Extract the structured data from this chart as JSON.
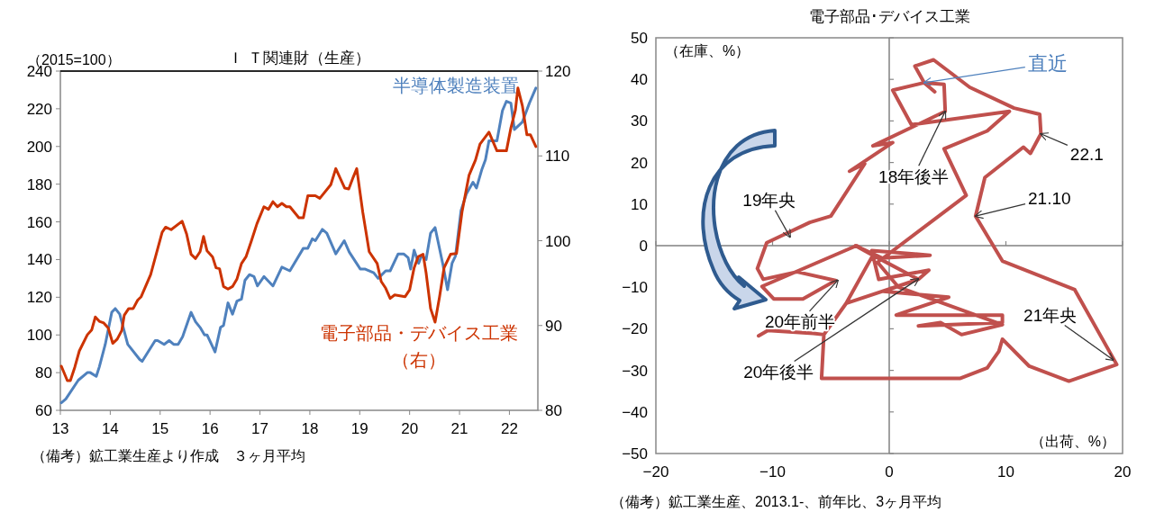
{
  "chart_data": [
    {
      "type": "line",
      "title": "Ｉ Ｔ関連財（生産）",
      "ylabel": "（2015=100）",
      "xlim": [
        2013,
        2022.57
      ],
      "xticks": [
        {
          "value": 2013,
          "label": "13"
        },
        {
          "value": 2014,
          "label": "14"
        },
        {
          "value": 2015,
          "label": "15"
        },
        {
          "value": 2016,
          "label": "16"
        },
        {
          "value": 2017,
          "label": "17"
        },
        {
          "value": 2018,
          "label": "18"
        },
        {
          "value": 2019,
          "label": "19"
        },
        {
          "value": 2020,
          "label": "20"
        },
        {
          "value": 2021,
          "label": "21"
        },
        {
          "value": 2022,
          "label": "22"
        }
      ],
      "ylim": [
        60,
        240
      ],
      "yticks": [
        60,
        80,
        100,
        120,
        140,
        160,
        180,
        200,
        220,
        240
      ],
      "y2lim": [
        80,
        120
      ],
      "y2ticks": [
        80,
        90,
        100,
        110,
        120
      ],
      "series": [
        {
          "name": "半導体製造装置",
          "color": "#4f81bd",
          "x": [
            2013.02,
            2013.11,
            2013.36,
            2013.54,
            2013.6,
            2013.72,
            2013.78,
            2013.9,
            2014.03,
            2014.1,
            2014.19,
            2014.35,
            2014.59,
            2014.64,
            2014.9,
            2014.95,
            2015.08,
            2015.18,
            2015.27,
            2015.36,
            2015.45,
            2015.62,
            2015.71,
            2015.8,
            2015.89,
            2015.94,
            2016.1,
            2016.21,
            2016.27,
            2016.36,
            2016.45,
            2016.54,
            2016.63,
            2016.7,
            2016.79,
            2016.88,
            2016.95,
            2017.08,
            2017.26,
            2017.44,
            2017.6,
            2017.87,
            2017.96,
            2018.05,
            2018.11,
            2018.25,
            2018.34,
            2018.52,
            2018.69,
            2018.79,
            2019.01,
            2019.1,
            2019.28,
            2019.37,
            2019.52,
            2019.61,
            2019.77,
            2019.88,
            2019.97,
            2020.02,
            2020.09,
            2020.18,
            2020.24,
            2020.33,
            2020.42,
            2020.51,
            2020.67,
            2020.76,
            2020.85,
            2020.92,
            2021.03,
            2021.14,
            2021.27,
            2021.34,
            2021.45,
            2021.52,
            2021.59,
            2021.75,
            2021.86,
            2021.94,
            2022.03,
            2022.1,
            2022.26,
            2022.4,
            2022.53
          ],
          "values": [
            64,
            66,
            76,
            80,
            80,
            78,
            83,
            95,
            112,
            114,
            111,
            95,
            87,
            86,
            97,
            97,
            95,
            97,
            95,
            95,
            99,
            112,
            107,
            104,
            100,
            100,
            91,
            104,
            105,
            117,
            111,
            118,
            119,
            129,
            132,
            131,
            126,
            131,
            126,
            136,
            134,
            146,
            146,
            151,
            150,
            156,
            154,
            143,
            150,
            144,
            135,
            135,
            133,
            130,
            134,
            134,
            143,
            143,
            141,
            135,
            145,
            138,
            142,
            140,
            154,
            157,
            137,
            124,
            138,
            142,
            166,
            175,
            181,
            178,
            188,
            193,
            203,
            203,
            219,
            224,
            223,
            209,
            213,
            223,
            231
          ]
        },
        {
          "name": "電子部品・デバイス工業（右）",
          "color": "#cc3300",
          "axis": "y2",
          "x": [
            2013.02,
            2013.14,
            2013.2,
            2013.29,
            2013.38,
            2013.54,
            2013.63,
            2013.7,
            2013.78,
            2013.87,
            2013.96,
            2014.05,
            2014.14,
            2014.23,
            2014.28,
            2014.37,
            2014.46,
            2014.55,
            2014.62,
            2014.81,
            2015.04,
            2015.11,
            2015.22,
            2015.44,
            2015.53,
            2015.62,
            2015.71,
            2015.8,
            2015.87,
            2015.94,
            2016.05,
            2016.12,
            2016.19,
            2016.27,
            2016.36,
            2016.45,
            2016.54,
            2016.63,
            2016.72,
            2016.83,
            2016.94,
            2017.08,
            2017.17,
            2017.26,
            2017.35,
            2017.44,
            2017.53,
            2017.6,
            2017.78,
            2017.87,
            2017.96,
            2018.11,
            2018.2,
            2018.42,
            2018.52,
            2018.7,
            2018.78,
            2018.87,
            2018.94,
            2019.06,
            2019.19,
            2019.35,
            2019.43,
            2019.52,
            2019.61,
            2019.7,
            2019.91,
            2020.0,
            2020.09,
            2020.17,
            2020.27,
            2020.33,
            2020.42,
            2020.51,
            2020.6,
            2020.69,
            2020.82,
            2020.94,
            2021.05,
            2021.19,
            2021.32,
            2021.41,
            2021.59,
            2021.75,
            2021.94,
            2022.03,
            2022.12,
            2022.17,
            2022.26,
            2022.35,
            2022.42,
            2022.53
          ],
          "values": [
            85.2,
            83.5,
            83.5,
            85.1,
            87,
            88.9,
            89.5,
            91,
            90.5,
            90.3,
            89.7,
            87.9,
            88.4,
            89.4,
            91.2,
            92,
            92,
            93,
            93.4,
            96,
            101,
            101.6,
            101.3,
            102.3,
            100.8,
            98.4,
            97.9,
            98.7,
            100.5,
            98.8,
            98.1,
            96.8,
            96.7,
            94.6,
            94.3,
            94.6,
            95.5,
            97.3,
            98.1,
            100,
            102,
            104,
            103.7,
            104.6,
            104,
            104.4,
            104,
            104,
            102.7,
            102.7,
            105.3,
            105.3,
            105,
            106.6,
            108.5,
            106.2,
            106.1,
            107.5,
            108.5,
            103.4,
            98.7,
            97.3,
            95.2,
            94.4,
            93.2,
            93.6,
            93.4,
            94.2,
            96.8,
            98.1,
            98.4,
            96.2,
            92,
            90.4,
            93.4,
            96.8,
            98.4,
            98.5,
            103.4,
            107.7,
            109.5,
            111.4,
            112.8,
            110.6,
            110.6,
            113.3,
            115.4,
            118,
            115.9,
            112.5,
            112.5,
            111.1
          ]
        }
      ],
      "annotations": [
        "（備考）鉱工業生産より作成　３ヶ月平均"
      ]
    },
    {
      "type": "line",
      "title": "電子部品･デバイス工業",
      "xlabel": "（出荷、%）",
      "ylabel": "（在庫、%）",
      "xlim": [
        -20,
        20
      ],
      "xticks": [
        -20,
        -10,
        0,
        10,
        20
      ],
      "ylim": [
        -50,
        50
      ],
      "yticks": [
        -50,
        -40,
        -30,
        -20,
        -10,
        0,
        10,
        20,
        30,
        40,
        50
      ],
      "series": [
        {
          "color": "#c0504d",
          "x": [
            -11.2,
            -10.4,
            -6.5,
            -5.6,
            -3.7,
            -1.4,
            -2.9,
            -0.6,
            3.5,
            -1.5,
            -0.9,
            3.4,
            2.5,
            -0.5,
            5.1,
            0.6,
            9.7,
            9.7,
            2.5,
            4.4,
            6.2,
            9.7,
            0.8,
            -1.0,
            6.6,
            4.7,
            8.4,
            10.3,
            1.9,
            0.3,
            3.0,
            4.7,
            4.8,
            -1.4,
            0.3,
            -3.4,
            -2.1,
            -5.0,
            -6.8,
            -10.5,
            -11.3,
            -10.8,
            -7.9,
            -4.6,
            -7.4,
            -9.9,
            -10.9,
            -2.8,
            -1.4,
            2.5,
            -3.7,
            -5.6,
            -5.8,
            6.1,
            8.4,
            9.4,
            9.7,
            12.0,
            15.4,
            19.5,
            15.9,
            9.7,
            7.4,
            8.2,
            11.5,
            12.1,
            13.0,
            12.9,
            10.7,
            6.9,
            3.8,
            2.2,
            3.0,
            3.9
          ],
          "values": [
            -21.7,
            -20.4,
            -21.1,
            -21.4,
            -13.9,
            -2.3,
            0,
            -3,
            -2.3,
            -1.2,
            -8.1,
            -5.9,
            -8.1,
            -11,
            -12.4,
            -16.7,
            -16.7,
            -18.5,
            -19.3,
            -18.5,
            -21.4,
            -19.0,
            -10,
            -4,
            12.1,
            23.3,
            27.6,
            32.3,
            29.1,
            37.4,
            39.2,
            38.8,
            32.3,
            24,
            24.8,
            17.9,
            19.7,
            7.1,
            5.6,
            0.7,
            -5.5,
            -8.1,
            -6.3,
            -8.4,
            -12.8,
            -12.8,
            -9.8,
            0,
            -2.3,
            -8.1,
            -13.9,
            -21.4,
            -31.9,
            -31.9,
            -29.4,
            -25.4,
            -22.5,
            -29.0,
            -32.6,
            -28.6,
            -10.6,
            -3.7,
            7.1,
            16.4,
            23.7,
            22.2,
            26.9,
            31.6,
            33.1,
            38.1,
            44.7,
            43.2,
            39.2,
            37.0
          ]
        }
      ],
      "annotations": [
        {
          "text": "19年央",
          "x": -8.5,
          "y": 2.1
        },
        {
          "text": "18年後半",
          "x": 4.8,
          "y": 32.3
        },
        {
          "text": "22.1",
          "x": 13.0,
          "y": 26.9
        },
        {
          "text": "21.10",
          "x": 7.4,
          "y": 7.1
        },
        {
          "text": "21年央",
          "x": 19.2,
          "y": -27.5
        },
        {
          "text": "20年前半",
          "x": -4.4,
          "y": -8.3
        },
        {
          "text": "20年後半",
          "x": 2.5,
          "y": -8
        },
        {
          "text": "直近",
          "x": 3.0,
          "y": 39.2
        },
        "（備考）鉱工業生産、2013.1-、前年比、3ヶ月平均"
      ]
    }
  ]
}
